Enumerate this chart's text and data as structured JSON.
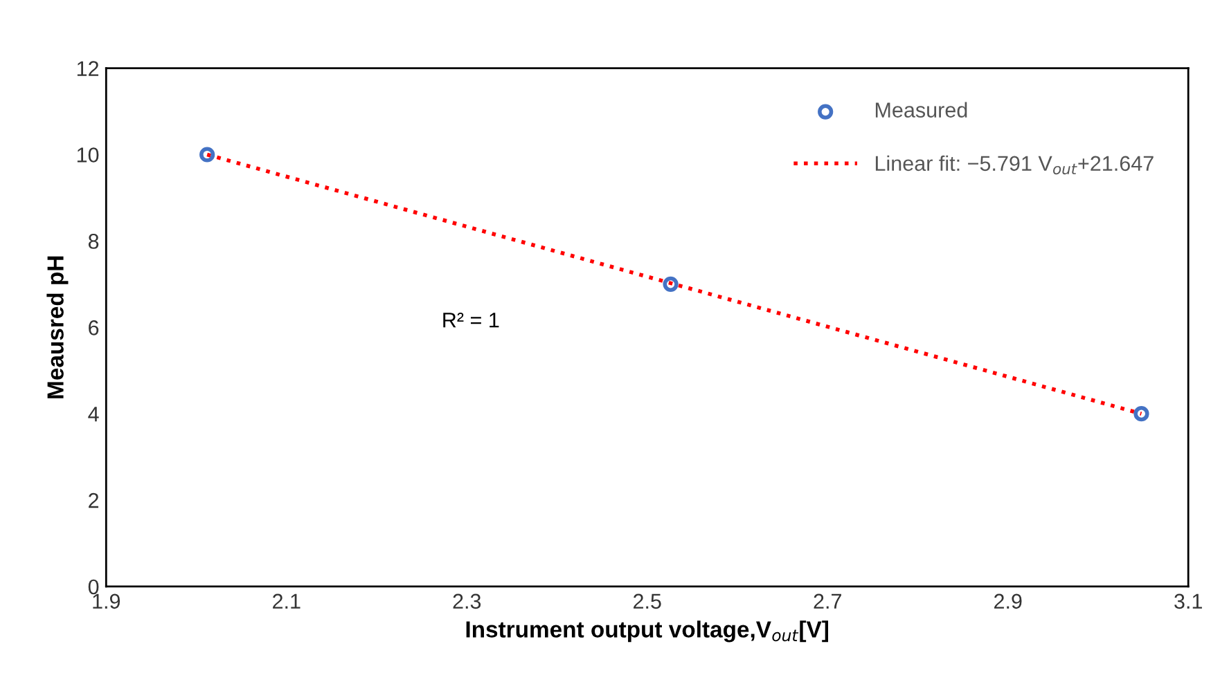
{
  "chart_data": {
    "type": "scatter",
    "xlabel": "Instrument output voltage,V$_{out}$[V]",
    "ylabel": "Meausred pH",
    "xlim": [
      1.9,
      3.1
    ],
    "xticks": [
      1.9,
      2.1,
      2.3,
      2.5,
      2.7,
      2.9,
      3.1
    ],
    "ylim": [
      0,
      12
    ],
    "yticks": [
      0,
      2,
      4,
      6,
      8,
      10,
      12
    ],
    "series": [
      {
        "name": "Measured",
        "color": "#4472c4",
        "marker": "circle",
        "x": [
          2.012,
          2.526,
          3.048
        ],
        "values": [
          10,
          7,
          4
        ]
      },
      {
        "name": "Linear fit: −5.791 V$_{out}$+21.647",
        "type": "line",
        "color": "#ff0000",
        "line_style": "dotted",
        "x": [
          2.012,
          3.048
        ],
        "values": [
          10,
          4
        ]
      }
    ],
    "annotations": [
      "R² = 1"
    ],
    "grid": false,
    "legend": "top right"
  }
}
